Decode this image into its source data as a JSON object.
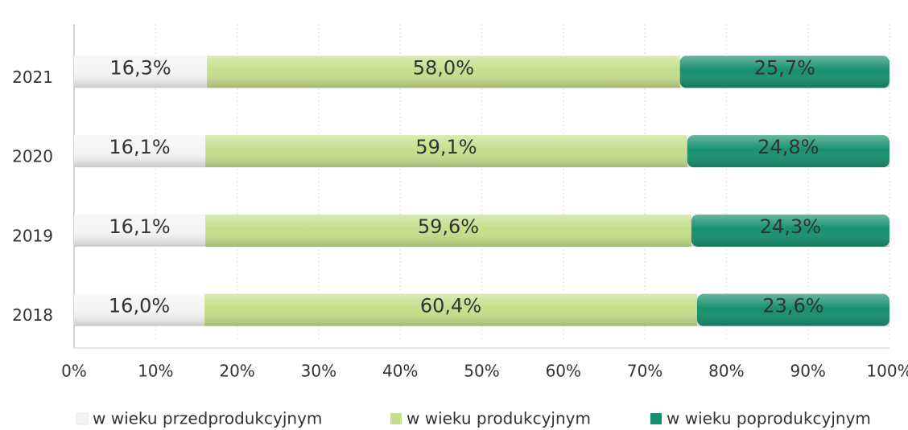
{
  "chart_data": {
    "type": "stacked-bar-horizontal",
    "categories": [
      "2021",
      "2020",
      "2019",
      "2018"
    ],
    "series": [
      {
        "name": "w wieku przedprodukcyjnym",
        "color": "#f4f4f4",
        "values": [
          16.3,
          16.1,
          16.1,
          16.0
        ],
        "value_labels": [
          "16,3%",
          "16,1%",
          "16,1%",
          "16,0%"
        ]
      },
      {
        "name": "w wieku produkcyjnym",
        "color": "#c6de8c",
        "values": [
          58.0,
          59.1,
          59.6,
          60.4
        ],
        "value_labels": [
          "58,0%",
          "59,1%",
          "59,6%",
          "60,4%"
        ]
      },
      {
        "name": "w wieku poprodukcyjnym",
        "color": "#17906e",
        "values": [
          25.7,
          24.8,
          24.3,
          23.6
        ],
        "value_labels": [
          "25,7%",
          "24,8%",
          "24,3%",
          "23,6%"
        ]
      }
    ],
    "xlim": [
      0,
      100
    ],
    "xticks": [
      {
        "value": 0,
        "label": "0%"
      },
      {
        "value": 10,
        "label": "10%"
      },
      {
        "value": 20,
        "label": "20%"
      },
      {
        "value": 30,
        "label": "30%"
      },
      {
        "value": 40,
        "label": "40%"
      },
      {
        "value": 50,
        "label": "50%"
      },
      {
        "value": 60,
        "label": "60%"
      },
      {
        "value": 70,
        "label": "70%"
      },
      {
        "value": 80,
        "label": "80%"
      },
      {
        "value": 90,
        "label": "90%"
      },
      {
        "value": 100,
        "label": "100%"
      }
    ],
    "grid": true,
    "legend": "bottom"
  }
}
